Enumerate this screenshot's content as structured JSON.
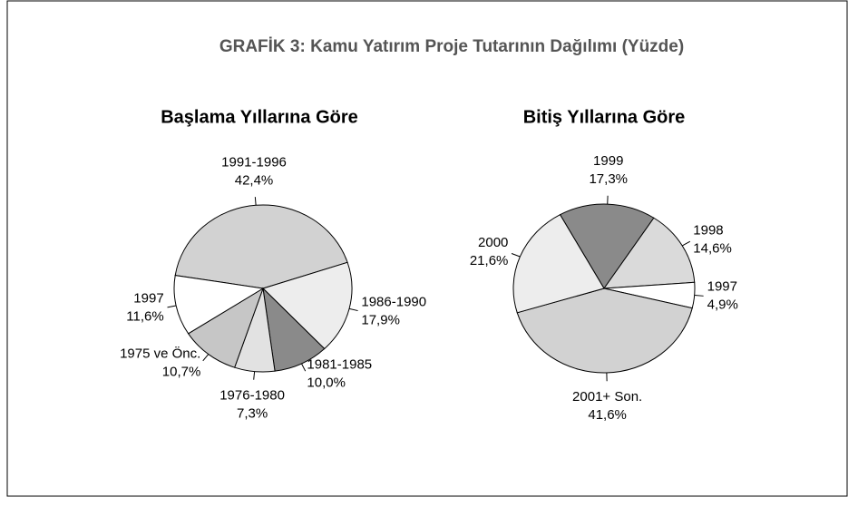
{
  "title": "GRAFİK 3: Kamu Yatırım Proje Tutarının Dağılımı (Yüzde)",
  "chart_data": [
    {
      "type": "pie",
      "title": "Başlama Yıllarına Göre",
      "start_angle": -81,
      "categories": [
        "1991-1996",
        "1986-1990",
        "1981-1985",
        "1976-1980",
        "1975 ve Önc.",
        "1997"
      ],
      "values": [
        42.4,
        17.9,
        10.0,
        7.3,
        10.7,
        11.6
      ],
      "value_labels": [
        "42,4%",
        "17,9%",
        "10,0%",
        "7,3%",
        "10,7%",
        "11,6%"
      ],
      "colors": [
        "#d2d2d2",
        "#ededed",
        "#8a8a8a",
        "#e2e2e2",
        "#c6c6c6",
        "#ffffff"
      ]
    },
    {
      "type": "pie",
      "title": "Bitiş Yıllarına Göre",
      "start_angle": -29,
      "categories": [
        "1999",
        "1998",
        "1997",
        "2001+ Son.",
        "2000"
      ],
      "values": [
        17.3,
        14.6,
        4.9,
        41.6,
        21.6
      ],
      "value_labels": [
        "17,3%",
        "14,6%",
        "4,9%",
        "41,6%",
        "21,6%"
      ],
      "colors": [
        "#8a8a8a",
        "#dadada",
        "#ffffff",
        "#d2d2d2",
        "#ededed"
      ]
    }
  ]
}
